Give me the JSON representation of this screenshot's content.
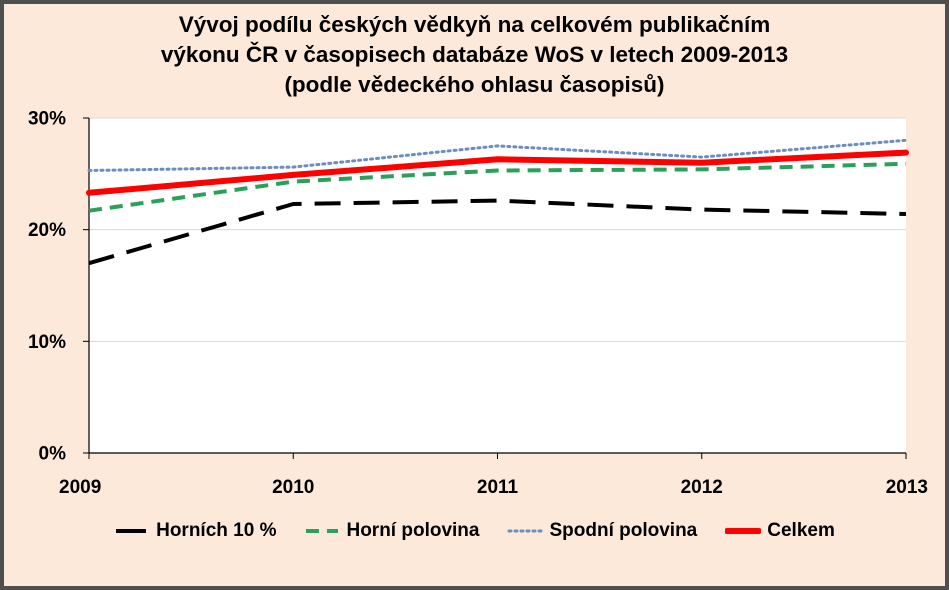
{
  "chart_data": {
    "type": "line",
    "title_lines": [
      "Vývoj podílu českých vědkyň na celkovém publikačním",
      "výkonu  ČR v časopisech databáze WoS v letech 2009-2013",
      "(podle vědeckého ohlasu časopisů)"
    ],
    "x": [
      "2009",
      "2010",
      "2011",
      "2012",
      "2013"
    ],
    "ylim": [
      0,
      30
    ],
    "yticks": [
      0,
      10,
      20,
      30
    ],
    "ytick_labels": [
      "0%",
      "10%",
      "20%",
      "30%"
    ],
    "grid": true,
    "legend_position": "bottom",
    "series": [
      {
        "name": "Horních 10 %",
        "values": [
          17.0,
          22.3,
          22.6,
          21.8,
          21.4
        ],
        "color": "#000000",
        "style": "long-dash"
      },
      {
        "name": "Horní polovina",
        "values": [
          21.7,
          24.3,
          25.3,
          25.4,
          25.9
        ],
        "color": "#2ca05a",
        "style": "dash"
      },
      {
        "name": "Spodní polovina",
        "values": [
          25.3,
          25.6,
          27.5,
          26.5,
          28.0
        ],
        "color": "#6c8ebf",
        "style": "dot"
      },
      {
        "name": "Celkem",
        "values": [
          23.3,
          24.9,
          26.3,
          26.0,
          26.9
        ],
        "color": "#ff0000",
        "style": "solid"
      }
    ]
  }
}
